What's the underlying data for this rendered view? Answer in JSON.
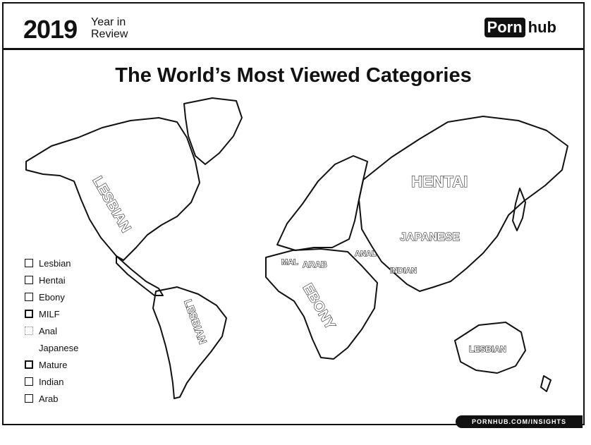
{
  "header": {
    "year": "2019",
    "year_in_review_line1": "Year in",
    "year_in_review_line2": "Review",
    "brand_box": "Porn",
    "brand_rest": "hub"
  },
  "title": "The World’s Most Viewed Categories",
  "legend": [
    {
      "label": "Lesbian",
      "swatch": "outline"
    },
    {
      "label": "Hentai",
      "swatch": "outline"
    },
    {
      "label": "Ebony",
      "swatch": "outline"
    },
    {
      "label": "MILF",
      "swatch": "dark-outline"
    },
    {
      "label": "Anal",
      "swatch": "light-outline"
    },
    {
      "label": "Japanese",
      "swatch": "none"
    },
    {
      "label": "Mature",
      "swatch": "dark-outline"
    },
    {
      "label": "Indian",
      "swatch": "outline"
    },
    {
      "label": "Arab",
      "swatch": "outline"
    }
  ],
  "map_labels": {
    "lesbian_north_america": "LESBIAN",
    "lesbian_south_america": "LESBIAN",
    "lesbian_australia": "LESBIAN",
    "hentai": "HENTAI",
    "japanese": "JAPANESE",
    "anal": "ANAL",
    "arab": "ARAB",
    "mal": "MAL",
    "indian": "INDIAN",
    "ebony": "EBONY"
  },
  "footer": "PORNHUB.COM/INSIGHTS"
}
